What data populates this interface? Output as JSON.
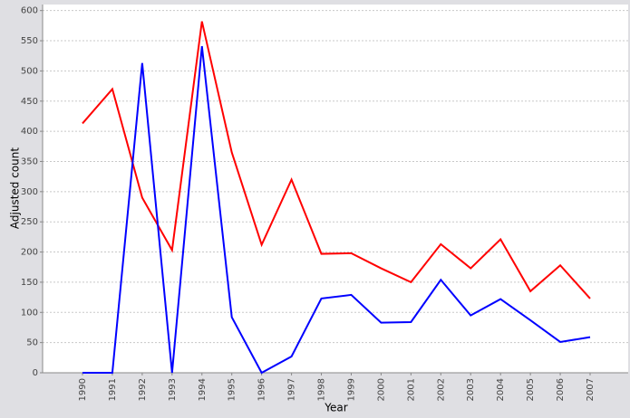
{
  "chart_data": {
    "type": "line",
    "x_label": "Year",
    "y_label": "Adjusted count",
    "categories": [
      "1990",
      "1991",
      "1992",
      "1993",
      "1994",
      "1995",
      "1996",
      "1997",
      "1998",
      "1999",
      "2000",
      "2001",
      "2002",
      "2003",
      "2004",
      "2005",
      "2006",
      "2007"
    ],
    "series": [
      {
        "color": "#ff0000",
        "values": [
          413,
          470,
          290,
          203,
          582,
          365,
          212,
          320,
          197,
          198,
          173,
          150,
          213,
          173,
          221,
          135,
          178,
          123
        ]
      },
      {
        "color": "#0000ff",
        "values": [
          0,
          0,
          513,
          0,
          541,
          92,
          0,
          27,
          123,
          129,
          83,
          84,
          154,
          95,
          122,
          87,
          51,
          59
        ]
      }
    ],
    "ylim": [
      0,
      610
    ],
    "yticks": [
      0,
      50,
      100,
      150,
      200,
      250,
      300,
      350,
      400,
      450,
      500,
      550,
      600
    ],
    "grid": true
  }
}
